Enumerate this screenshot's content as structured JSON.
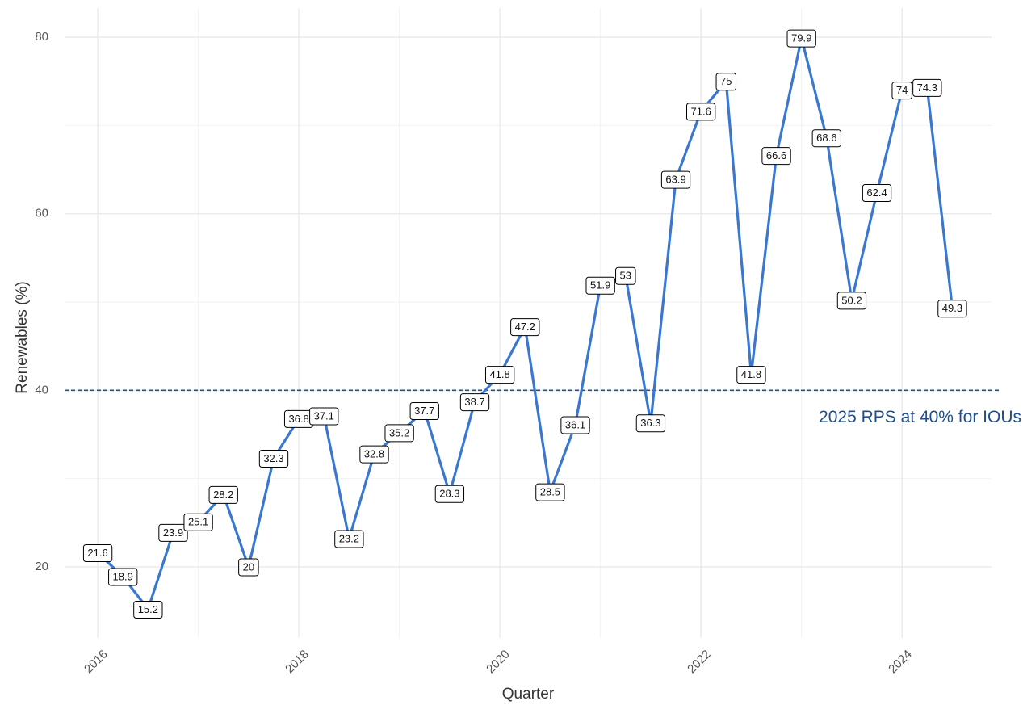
{
  "chart_data": {
    "type": "line",
    "x_label": "Quarter",
    "y_label": "Renewables (%)",
    "x": [
      2016,
      2016.25,
      2016.5,
      2016.75,
      2017,
      2017.25,
      2017.5,
      2017.75,
      2018,
      2018.25,
      2018.5,
      2018.75,
      2019,
      2019.25,
      2019.5,
      2019.75,
      2020,
      2020.25,
      2020.5,
      2020.75,
      2021,
      2021.25,
      2021.5,
      2021.75,
      2022,
      2022.25,
      2022.5,
      2022.75,
      2023,
      2023.25,
      2023.5,
      2023.75,
      2024,
      2024.25,
      2024.5
    ],
    "series": [
      {
        "name": "Renewables",
        "color": "#3a78d0",
        "values": [
          21.6,
          18.9,
          15.2,
          23.9,
          25.1,
          28.2,
          20,
          32.3,
          36.8,
          37.1,
          23.2,
          32.8,
          35.2,
          37.7,
          28.3,
          38.7,
          41.8,
          47.2,
          28.5,
          36.1,
          51.9,
          53,
          36.3,
          63.9,
          71.6,
          75,
          41.8,
          66.6,
          79.9,
          68.6,
          50.2,
          62.4,
          74,
          74.3,
          49.3
        ]
      }
    ],
    "xlim": [
      2015.67,
      2024.89
    ],
    "xticks": [
      2016,
      2018,
      2020,
      2022,
      2024
    ],
    "xminorticks": [
      2017,
      2019,
      2021,
      2023
    ],
    "ylim": [
      11.95,
      83.3
    ],
    "yticks": [
      20,
      40,
      60,
      80
    ],
    "yminorticks": [
      30,
      50,
      70
    ],
    "grid": true,
    "hline": {
      "value": 40,
      "color": "#1f4e8c",
      "label": "2025 RPS at 40% for IOUs"
    }
  }
}
